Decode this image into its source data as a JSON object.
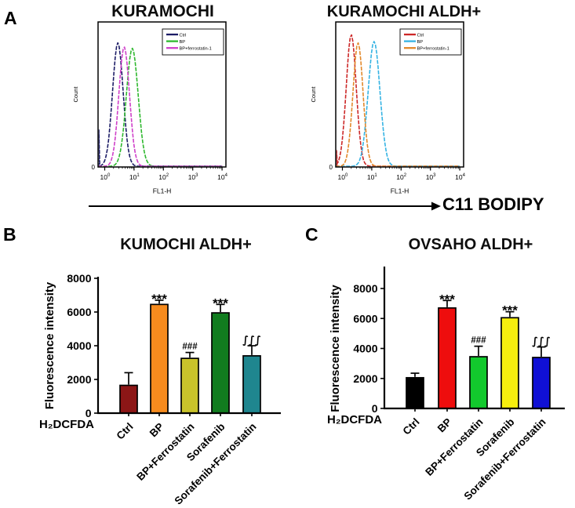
{
  "panels": {
    "a": {
      "label": "A"
    },
    "b": {
      "label": "B"
    },
    "c": {
      "label": "C"
    }
  },
  "arrow_label": "C11 BODIPY",
  "chart_data": [
    {
      "id": "flow-kuramochi",
      "type": "line",
      "subtype": "flow-cytometry-histogram",
      "title": "KURAMOCHI",
      "xlabel": "FL1-H",
      "ylabel": "Count",
      "y_origin_label": "0",
      "x_scale": "log10",
      "x_ticks": [
        "10^0",
        "10^1",
        "10^2",
        "10^3",
        "10^4"
      ],
      "legend_position": "top-right",
      "series": [
        {
          "name": "Ctrl",
          "color": "#1c1c66",
          "peak_x": 2.8,
          "rel_height": 0.9,
          "sigma_decades": 0.18,
          "edge_spike": 0.27
        },
        {
          "name": "BP",
          "color": "#2eb82e",
          "peak_x": 8.7,
          "rel_height": 0.86,
          "sigma_decades": 0.2
        },
        {
          "name": "BP+ferrostatin-1",
          "color": "#cf3fc9",
          "peak_x": 4.6,
          "rel_height": 0.87,
          "sigma_decades": 0.18
        }
      ]
    },
    {
      "id": "flow-kuramochi-aldh",
      "type": "line",
      "subtype": "flow-cytometry-histogram",
      "title": "KURAMOCHI ALDH+",
      "xlabel": "FL1-H",
      "ylabel": "Count",
      "y_origin_label": "0",
      "x_scale": "log10",
      "x_ticks": [
        "10^0",
        "10^1",
        "10^2",
        "10^3",
        "10^4"
      ],
      "legend_position": "top-right",
      "series": [
        {
          "name": "Ctrl",
          "color": "#cc2727",
          "peak_x": 2.0,
          "rel_height": 0.96,
          "sigma_decades": 0.17,
          "edge_spike": 0.12
        },
        {
          "name": "BP",
          "color": "#35b3e3",
          "peak_x": 12.0,
          "rel_height": 0.91,
          "sigma_decades": 0.2
        },
        {
          "name": "BP+ferrostatin-1",
          "color": "#e2882a",
          "peak_x": 3.4,
          "rel_height": 0.9,
          "sigma_decades": 0.17
        }
      ]
    },
    {
      "id": "bar-kumochi-aldh",
      "type": "bar",
      "title": "KUMOCHI ALDH+",
      "ylabel": "Fluorescence intensity",
      "x_assay_label": "H₂DCFDA",
      "ylim": [
        0,
        8000
      ],
      "y_ticks": [
        0,
        2000,
        4000,
        6000,
        8000
      ],
      "categories": [
        "Ctrl",
        "BP",
        "BP+Ferrostatin",
        "Sorafenib",
        "Sorafenib+Ferrostatin"
      ],
      "values": [
        1650,
        6450,
        3250,
        5950,
        3400
      ],
      "errors_upper": [
        750,
        250,
        350,
        500,
        600
      ],
      "bar_colors": [
        "#8c1616",
        "#f68b1e",
        "#c9c32b",
        "#117c1f",
        "#1f868f"
      ],
      "annotations": [
        "",
        "***",
        "###",
        "***",
        "∫∫∫"
      ]
    },
    {
      "id": "bar-ovsaho-aldh",
      "type": "bar",
      "title": "OVSAHO ALDH+",
      "ylabel": "Fluorescence intensity",
      "x_assay_label": "H₂DCFDA",
      "ylim": [
        0,
        8000
      ],
      "y_ticks": [
        0,
        2000,
        4000,
        6000,
        8000
      ],
      "categories": [
        "Ctrl",
        "BP",
        "BP+Ferrostatin",
        "Sorafenib",
        "Sorafenib+Ferrostatin"
      ],
      "values": [
        2050,
        6700,
        3450,
        6050,
        3400
      ],
      "errors_upper": [
        300,
        500,
        700,
        400,
        700
      ],
      "bar_colors": [
        "#000000",
        "#ee0d0d",
        "#12c92d",
        "#f6ee0e",
        "#1010d5"
      ],
      "annotations": [
        "",
        "***",
        "###",
        "***",
        "∫∫∫"
      ]
    }
  ]
}
